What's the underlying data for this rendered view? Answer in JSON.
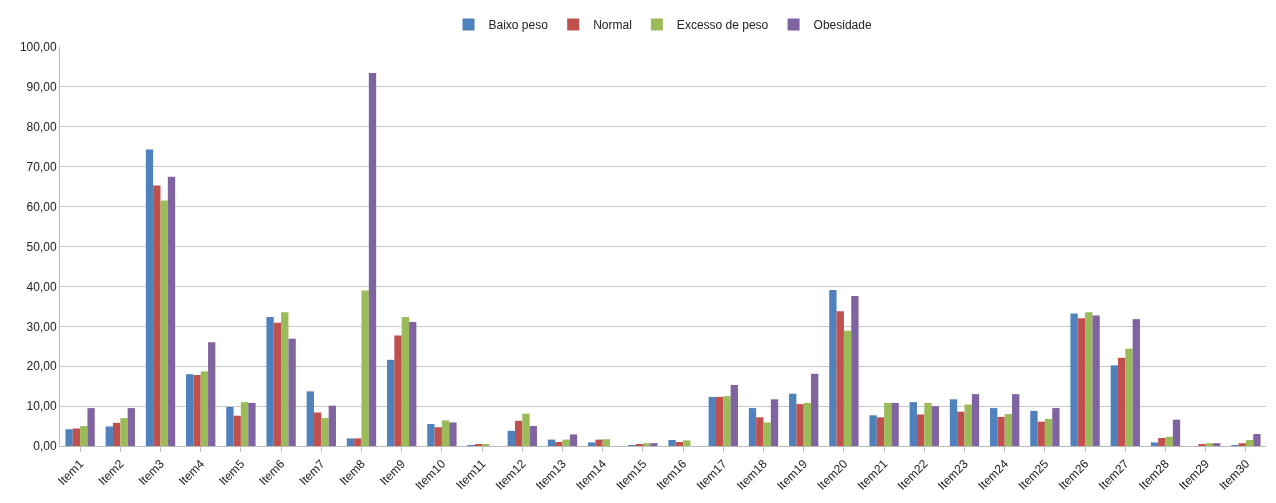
{
  "chart_data": {
    "type": "bar",
    "categories": [
      "Item1",
      "Item2",
      "Item3",
      "Item4",
      "Item5",
      "Item6",
      "Item7",
      "Item8",
      "Item9",
      "Item10",
      "Item11",
      "Item12",
      "Item13",
      "Item14",
      "Item15",
      "Item16",
      "Item17",
      "Item18",
      "Item19",
      "Item20",
      "Item21",
      "Item22",
      "Item23",
      "Item24",
      "Item25",
      "Item26",
      "Item27",
      "Item28",
      "Item29",
      "Item30"
    ],
    "series": [
      {
        "name": "Baixo peso",
        "color": "#4f81bd",
        "values": [
          4.2,
          4.9,
          74.3,
          18.0,
          9.8,
          32.3,
          13.7,
          1.9,
          21.6,
          5.5,
          0.2,
          3.8,
          1.6,
          0.9,
          0.2,
          1.5,
          12.3,
          9.5,
          13.1,
          39.1,
          7.7,
          11.0,
          11.7,
          9.5,
          8.8,
          33.2,
          20.2,
          0.9,
          null,
          0.2
        ]
      },
      {
        "name": "Normal",
        "color": "#c0504d",
        "values": [
          4.4,
          5.8,
          65.3,
          17.8,
          7.6,
          30.9,
          8.4,
          1.9,
          27.7,
          4.7,
          0.4,
          6.3,
          1.0,
          1.6,
          0.5,
          1.0,
          12.3,
          7.2,
          10.5,
          33.8,
          7.2,
          7.9,
          8.6,
          7.3,
          6.1,
          32.0,
          22.1,
          2.0,
          0.5,
          0.7
        ]
      },
      {
        "name": "Excesso de peso",
        "color": "#9bbb59",
        "values": [
          5.0,
          7.0,
          61.5,
          18.7,
          11.0,
          33.5,
          7.0,
          39.0,
          32.3,
          6.4,
          0.5,
          8.1,
          1.6,
          1.7,
          0.7,
          1.4,
          12.5,
          5.9,
          10.8,
          28.9,
          10.8,
          10.8,
          10.4,
          8.0,
          6.8,
          33.5,
          24.4,
          2.3,
          0.7,
          1.5
        ]
      },
      {
        "name": "Obesidade",
        "color": "#8064a2",
        "values": [
          9.5,
          9.5,
          67.5,
          26.0,
          10.8,
          26.9,
          10.1,
          93.5,
          31.1,
          5.9,
          null,
          5.0,
          2.9,
          null,
          0.7,
          null,
          15.3,
          11.7,
          18.1,
          37.6,
          10.8,
          10.0,
          13.0,
          13.0,
          9.5,
          32.7,
          31.8,
          6.6,
          0.7,
          3.0
        ]
      }
    ],
    "ylim": [
      0,
      100
    ],
    "yticks": [
      {
        "value": 0,
        "label": "0,00"
      },
      {
        "value": 10,
        "label": "10,00"
      },
      {
        "value": 20,
        "label": "20,00"
      },
      {
        "value": 30,
        "label": "30,00"
      },
      {
        "value": 40,
        "label": "40,00"
      },
      {
        "value": 50,
        "label": "50,00"
      },
      {
        "value": 60,
        "label": "60,00"
      },
      {
        "value": 70,
        "label": "70,00"
      },
      {
        "value": 80,
        "label": "80,00"
      },
      {
        "value": 90,
        "label": "90,00"
      },
      {
        "value": 100,
        "label": "100,00"
      }
    ],
    "grid": "y",
    "legend": "top"
  }
}
